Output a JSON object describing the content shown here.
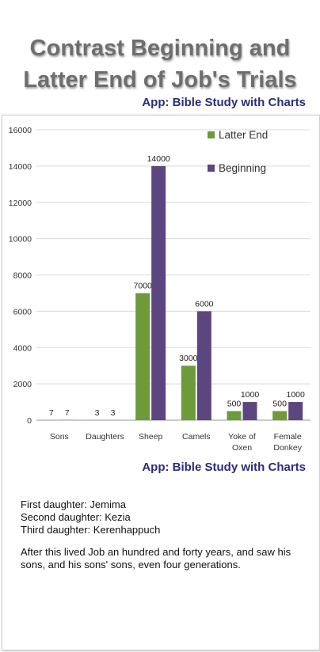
{
  "title_line1": "Contrast Beginning and",
  "title_line2": "Latter End of Job's Trials",
  "app_label_top": "App: Bible Study with Charts",
  "app_label_bottom": "App: Bible Study with Charts",
  "notes": {
    "line1": "First daughter: Jemima",
    "line2": "Second daughter: Kezia",
    "line3": "Third daughter: Kerenhappuch",
    "verse": "After this lived Job an hundred and forty years, and saw his sons, and his sons' sons, even four generations."
  },
  "colors": {
    "latter_end": "#6e9a3a",
    "beginning": "#5c4680",
    "title": "#6e6e6e",
    "app_label": "#2b2d7a"
  },
  "chart_data": {
    "type": "bar",
    "categories": [
      [
        "Sons"
      ],
      [
        "Daughters"
      ],
      [
        "Sheep"
      ],
      [
        "Camels"
      ],
      [
        "Yoke of",
        "Oxen"
      ],
      [
        "Female",
        "Donkey"
      ]
    ],
    "series": [
      {
        "name": "Latter End",
        "values": [
          7,
          3,
          7000,
          3000,
          500,
          500
        ]
      },
      {
        "name": "Beginning",
        "values": [
          7,
          3,
          14000,
          6000,
          1000,
          1000
        ]
      }
    ],
    "yticks": [
      0,
      2000,
      4000,
      6000,
      8000,
      10000,
      12000,
      14000,
      16000
    ],
    "ylim": [
      0,
      16000
    ],
    "grid": true,
    "legend_position": "top-right",
    "data_labels": true
  }
}
